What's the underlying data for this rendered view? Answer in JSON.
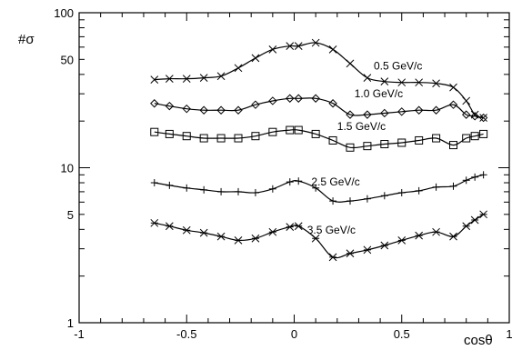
{
  "chart_data": {
    "type": "line",
    "title": "",
    "xlabel": "cosθ",
    "ylabel": "#σ",
    "xlim": [
      -1,
      1
    ],
    "ylim": [
      1,
      100
    ],
    "y_scale": "log",
    "grid": false,
    "x_ticks": [
      -1,
      -0.5,
      0,
      0.5,
      1
    ],
    "x_tick_labels": [
      "-1",
      "-0.5",
      "0",
      "0.5",
      "1"
    ],
    "y_ticks": [
      1,
      5,
      10,
      50,
      100
    ],
    "y_tick_labels": [
      "1",
      "5",
      "10",
      "50",
      "100"
    ],
    "series": [
      {
        "name": "0.5 GeV/c",
        "marker": "x",
        "x": [
          -0.65,
          -0.58,
          -0.5,
          -0.42,
          -0.34,
          -0.26,
          -0.18,
          -0.1,
          -0.02,
          0.02,
          0.1,
          0.18,
          0.26,
          0.34,
          0.42,
          0.5,
          0.58,
          0.66,
          0.74,
          0.8,
          0.84,
          0.88
        ],
        "y": [
          37,
          37.5,
          37.5,
          38,
          39,
          44,
          51,
          58,
          61,
          61,
          64,
          58,
          47,
          38,
          36,
          35.5,
          35.5,
          35,
          33,
          27,
          22,
          21
        ]
      },
      {
        "name": "1.0 GeV/c",
        "marker": "diamond",
        "x": [
          -0.65,
          -0.58,
          -0.5,
          -0.42,
          -0.34,
          -0.26,
          -0.18,
          -0.1,
          -0.02,
          0.02,
          0.1,
          0.18,
          0.26,
          0.34,
          0.42,
          0.5,
          0.58,
          0.66,
          0.74,
          0.8,
          0.84,
          0.88
        ],
        "y": [
          26,
          25,
          24,
          23.5,
          23.5,
          23.5,
          25.5,
          27,
          28,
          28,
          28,
          26,
          22,
          22,
          22.5,
          23,
          23.5,
          23.5,
          25.5,
          22,
          21.5,
          21
        ]
      },
      {
        "name": "1.5 GeV/c",
        "marker": "square",
        "x": [
          -0.65,
          -0.58,
          -0.5,
          -0.42,
          -0.34,
          -0.26,
          -0.18,
          -0.1,
          -0.02,
          0.02,
          0.1,
          0.18,
          0.26,
          0.34,
          0.42,
          0.5,
          0.58,
          0.66,
          0.74,
          0.8,
          0.84,
          0.88
        ],
        "y": [
          17,
          16.5,
          16,
          15.5,
          15.5,
          15.5,
          16,
          17,
          17.5,
          17.5,
          16.5,
          15,
          13.5,
          13.8,
          14.2,
          14.5,
          15,
          15.5,
          14,
          15.5,
          16,
          16.5
        ]
      },
      {
        "name": "2.5 GeV/c",
        "marker": "plus",
        "x": [
          -0.65,
          -0.58,
          -0.5,
          -0.42,
          -0.34,
          -0.26,
          -0.18,
          -0.1,
          -0.02,
          0.02,
          0.1,
          0.18,
          0.26,
          0.34,
          0.42,
          0.5,
          0.58,
          0.66,
          0.74,
          0.8,
          0.84,
          0.88
        ],
        "y": [
          8,
          7.7,
          7.4,
          7.2,
          7,
          7,
          6.9,
          7.3,
          8.1,
          8.2,
          7.4,
          6.1,
          6.1,
          6.3,
          6.6,
          6.9,
          7.1,
          7.5,
          7.6,
          8.3,
          8.7,
          9
        ]
      },
      {
        "name": "3.5 GeV/c",
        "marker": "star",
        "x": [
          -0.65,
          -0.58,
          -0.5,
          -0.42,
          -0.34,
          -0.26,
          -0.18,
          -0.1,
          -0.02,
          0.02,
          0.1,
          0.18,
          0.26,
          0.34,
          0.42,
          0.5,
          0.58,
          0.66,
          0.74,
          0.8,
          0.84,
          0.88
        ],
        "y": [
          4.4,
          4.2,
          3.95,
          3.8,
          3.6,
          3.4,
          3.5,
          3.85,
          4.15,
          4.2,
          3.5,
          2.65,
          2.8,
          2.95,
          3.15,
          3.4,
          3.65,
          3.85,
          3.6,
          4.2,
          4.6,
          5
        ]
      }
    ]
  }
}
